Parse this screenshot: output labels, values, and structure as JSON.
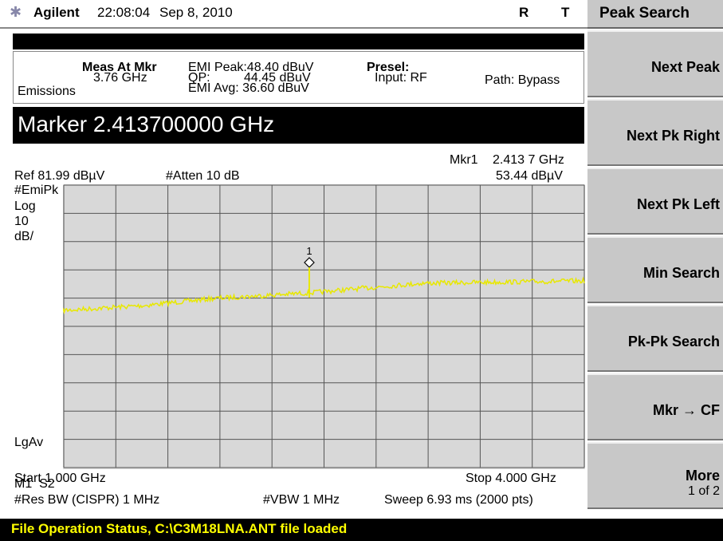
{
  "header": {
    "brand": "Agilent",
    "time": "22:08:04",
    "date": "Sep 8, 2010",
    "flags": [
      "R",
      "T"
    ]
  },
  "info": {
    "meas_label": "Meas At Mkr",
    "meas_freq": "3.76 GHz",
    "emi_peak": "EMI Peak:48.40 dBuV",
    "qp_label": "QP:",
    "qp_value": "44.45 dBuV",
    "emi_avg": "EMI Avg: 36.60 dBuV",
    "presel": "Presel:",
    "input": "Input: RF",
    "path": "Path: Bypass",
    "mode": "Emissions"
  },
  "marker_entry": "Marker 2.413700000 GHz",
  "plot": {
    "mkr_label": "Mkr1",
    "mkr_freq": "2.413 7 GHz",
    "ref": "Ref 81.99 dBµV",
    "atten": "#Atten 10 dB",
    "mkr_amp": "53.44 dBµV",
    "detector": "#EmiPk",
    "scale": "Log",
    "scale_value": "10",
    "scale_unit": "dB/",
    "avg": "LgAv",
    "marker_status": "M1  S2",
    "marker_number": "1",
    "start": "Start 1.000 GHz",
    "stop": "Stop 4.000 GHz",
    "rbw": "#Res BW (CISPR) 1 MHz",
    "vbw": "#VBW 1 MHz",
    "sweep": "Sweep 6.93 ms (2000 pts)"
  },
  "softkeys": {
    "title": "Peak Search",
    "buttons": [
      {
        "label": "Next Peak"
      },
      {
        "label": "Next Pk Right"
      },
      {
        "label": "Next Pk Left"
      },
      {
        "label": "Min Search"
      },
      {
        "label": "Pk-Pk Search"
      },
      {
        "label": "Mkr → CF"
      },
      {
        "label": "More",
        "sub": "1 of 2"
      }
    ]
  },
  "status": "File Operation Status, C:\\C3M18LNA.ANT file loaded"
}
